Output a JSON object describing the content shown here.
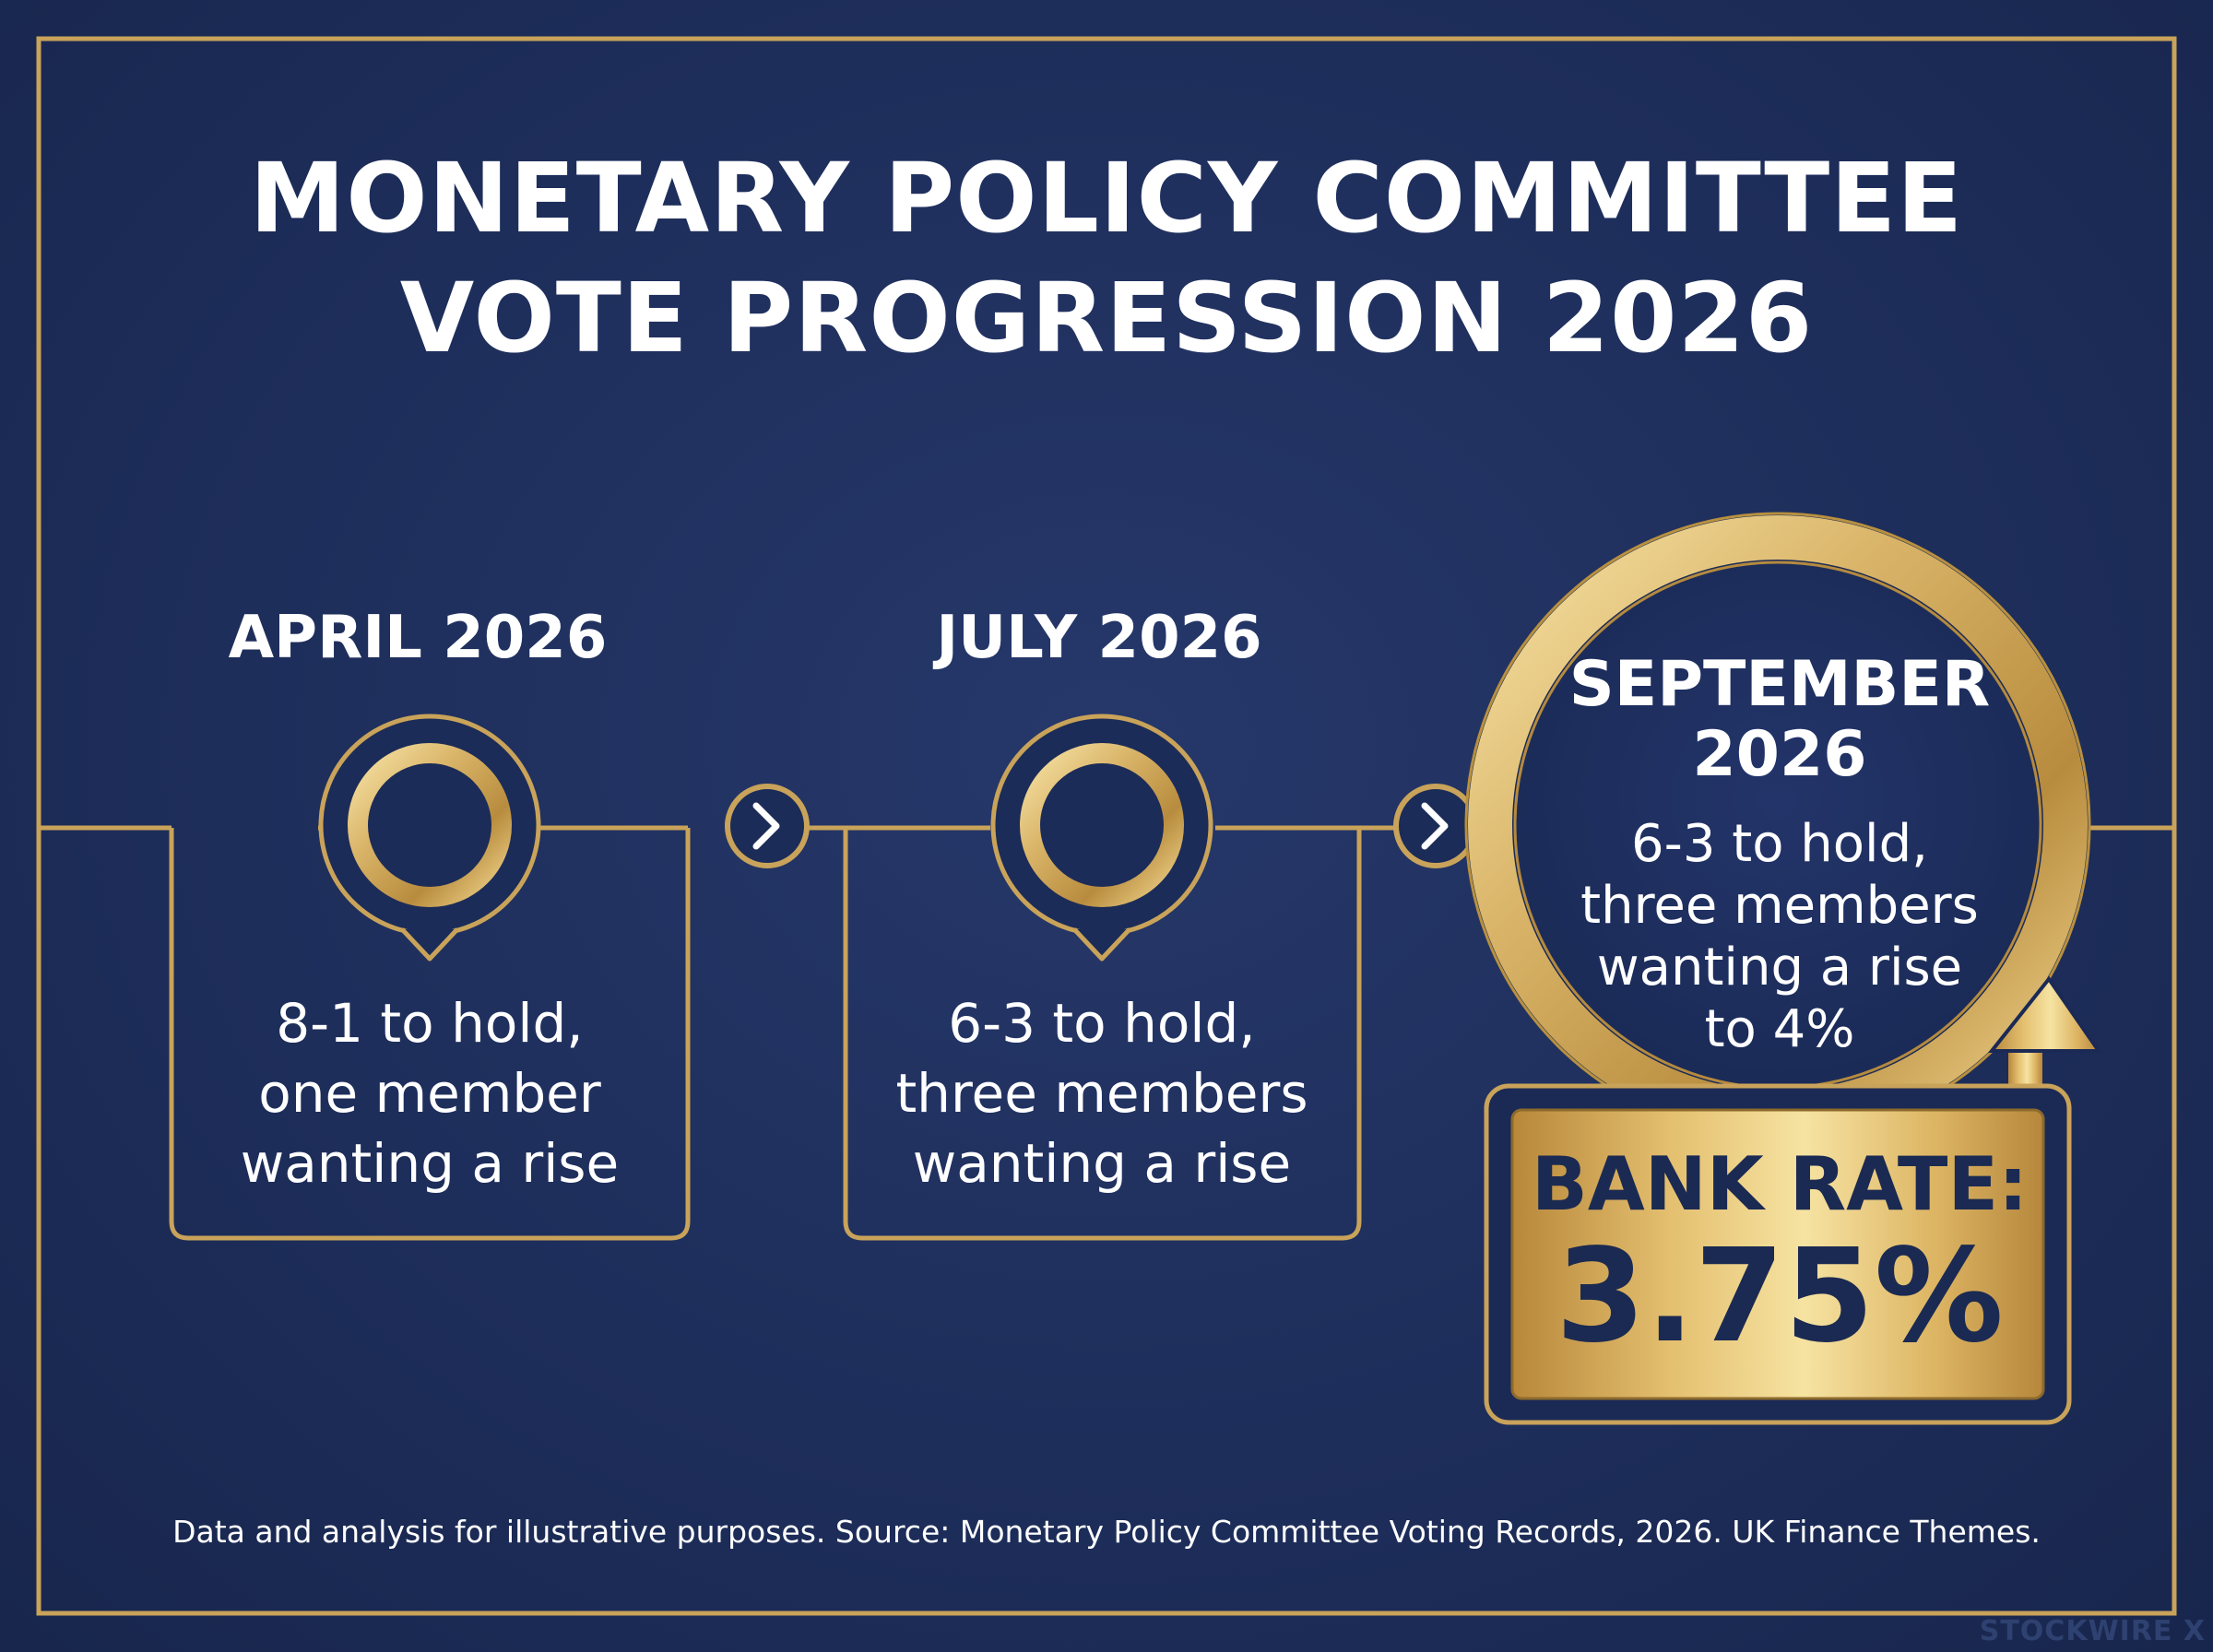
{
  "title": {
    "line1": "MONETARY POLICY COMMITTEE",
    "line2": "VOTE PROGRESSION 2026"
  },
  "colors": {
    "background": "#1e2e5b",
    "gold": "#c9a35a",
    "gold_light": "#f4dc98",
    "text": "#ffffff",
    "dark_text": "#1b2a52"
  },
  "timeline": [
    {
      "month": "APRIL 2026",
      "vote_lines": [
        "8-1 to hold,",
        "one member",
        "wanting a rise"
      ]
    },
    {
      "month": "JULY 2026",
      "vote_lines": [
        "6-3 to hold,",
        "three members",
        "wanting a rise"
      ]
    },
    {
      "month_lines": [
        "SEPTEMBER",
        "2026"
      ],
      "vote_lines": [
        "6-3 to hold,",
        "three members",
        "wanting a rise",
        "to 4%"
      ]
    }
  ],
  "bank_rate": {
    "label": "BANK RATE:",
    "value": "3.75%"
  },
  "footnote": "Data and analysis for illustrative purposes. Source: Monetary Policy Committee Voting Records, 2026. UK Finance Themes.",
  "brand": "STOCKWIRE X"
}
